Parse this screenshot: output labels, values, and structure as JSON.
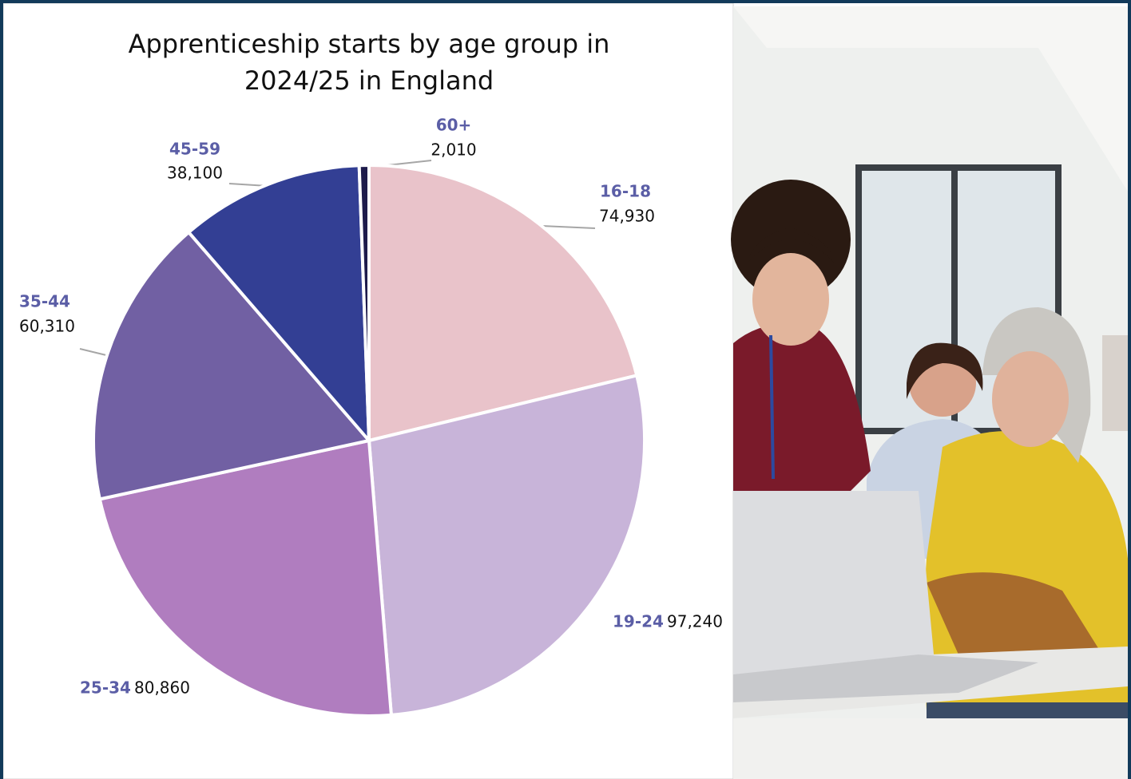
{
  "chart_data": {
    "type": "pie",
    "title": "Apprenticeship starts by age group in 2024/25 in England",
    "categories": [
      "16-18",
      "19-24",
      "25-34",
      "35-44",
      "45-59",
      "60+"
    ],
    "values": [
      74930,
      97240,
      80860,
      60310,
      38100,
      2010
    ],
    "value_labels": [
      "74,930",
      "97,240",
      "80,860",
      "60,310",
      "38,100",
      "2,010"
    ],
    "colors": [
      "#e9c3ca",
      "#c8b4d9",
      "#b07dbf",
      "#7160a3",
      "#333f94",
      "#1e1b4b"
    ]
  }
}
